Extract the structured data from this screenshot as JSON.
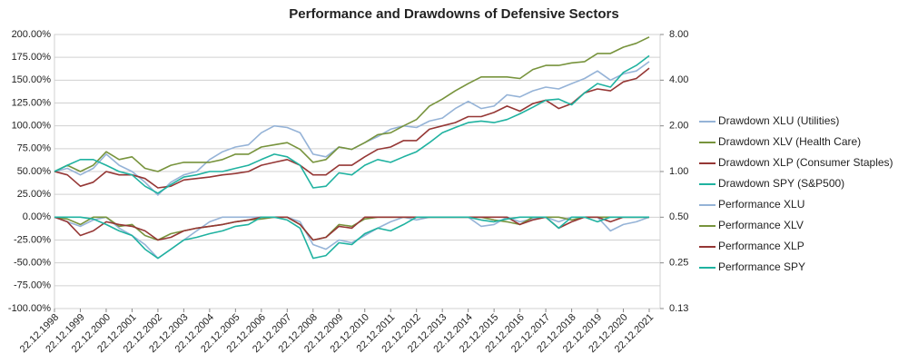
{
  "chart_data": {
    "type": "line",
    "title": "Performance and Drawdowns of Defensive Sectors",
    "categories": [
      "22.12.1998",
      null,
      "22.12.1999",
      null,
      "22.12.2000",
      null,
      "22.12.2001",
      null,
      "22.12.2002",
      null,
      "22.12.2003",
      null,
      "22.12.2004",
      null,
      "22.12.2005",
      null,
      "22.12.2006",
      null,
      "22.12.2007",
      null,
      "22.12.2008",
      null,
      "22.12.2009",
      null,
      "22.12.2010",
      null,
      "22.12.2011",
      null,
      "22.12.2012",
      null,
      "22.12.2013",
      null,
      "22.12.2014",
      null,
      "22.12.2015",
      null,
      "22.12.2016",
      null,
      "22.12.2017",
      null,
      "22.12.2018",
      null,
      "22.12.2019",
      null,
      "22.12.2020",
      null,
      "22.12.2021"
    ],
    "series": [
      {
        "name": "Drawdown XLU (Utilities)",
        "color": "#95b3d7",
        "values": [
          0,
          -5,
          -10,
          -3,
          0,
          -12,
          -20,
          -30,
          -45,
          -35,
          -25,
          -15,
          -5,
          0,
          0,
          0,
          0,
          0,
          0,
          -5,
          -30,
          -35,
          -25,
          -28,
          -20,
          -12,
          -5,
          0,
          -3,
          0,
          0,
          0,
          0,
          -10,
          -8,
          0,
          -5,
          -2,
          0,
          -5,
          0,
          0,
          0,
          -15,
          -8,
          -5,
          0
        ]
      },
      {
        "name": "Drawdown XLV (Health Care)",
        "color": "#77933c",
        "values": [
          0,
          -2,
          -8,
          0,
          0,
          -10,
          -8,
          -20,
          -25,
          -18,
          -15,
          -12,
          -10,
          -8,
          -5,
          -3,
          -2,
          0,
          0,
          -8,
          -25,
          -22,
          -8,
          -10,
          -2,
          0,
          0,
          0,
          0,
          0,
          0,
          0,
          0,
          0,
          -3,
          -5,
          -8,
          0,
          0,
          0,
          -3,
          0,
          0,
          0,
          0,
          0,
          0
        ]
      },
      {
        "name": "Drawdown XLP (Consumer Staples)",
        "color": "#953735",
        "values": [
          0,
          -5,
          -20,
          -15,
          -5,
          -8,
          -10,
          -15,
          -25,
          -22,
          -15,
          -12,
          -10,
          -8,
          -5,
          -3,
          0,
          0,
          0,
          -8,
          -25,
          -22,
          -10,
          -12,
          0,
          0,
          0,
          0,
          0,
          0,
          0,
          0,
          0,
          0,
          0,
          0,
          -8,
          -3,
          0,
          -12,
          -5,
          0,
          0,
          -5,
          0,
          0,
          0
        ]
      },
      {
        "name": "Drawdown SPY (S&P500)",
        "color": "#1fb2a0",
        "values": [
          0,
          0,
          0,
          -2,
          -8,
          -15,
          -20,
          -35,
          -45,
          -35,
          -25,
          -22,
          -18,
          -15,
          -10,
          -8,
          0,
          0,
          -3,
          -12,
          -45,
          -42,
          -28,
          -30,
          -18,
          -12,
          -15,
          -8,
          0,
          0,
          0,
          0,
          0,
          -3,
          -5,
          -2,
          0,
          0,
          0,
          -12,
          0,
          0,
          -5,
          0,
          0,
          0,
          0
        ]
      },
      {
        "name": "Performance XLU",
        "color": "#95b3d7",
        "axis": "y2",
        "values": [
          1.0,
          1.05,
          0.95,
          1.05,
          1.3,
          1.1,
          1.0,
          0.85,
          0.7,
          0.85,
          0.95,
          1.0,
          1.2,
          1.35,
          1.45,
          1.5,
          1.8,
          2.0,
          1.95,
          1.8,
          1.3,
          1.25,
          1.45,
          1.4,
          1.55,
          1.7,
          1.9,
          2.0,
          1.95,
          2.15,
          2.25,
          2.6,
          2.9,
          2.6,
          2.7,
          3.2,
          3.1,
          3.4,
          3.6,
          3.5,
          3.8,
          4.1,
          4.6,
          4.0,
          4.4,
          4.6,
          5.3
        ]
      },
      {
        "name": "Performance XLV",
        "color": "#77933c",
        "axis": "y2",
        "values": [
          1.0,
          1.1,
          1.0,
          1.1,
          1.35,
          1.2,
          1.25,
          1.05,
          1.0,
          1.1,
          1.15,
          1.15,
          1.15,
          1.2,
          1.3,
          1.3,
          1.45,
          1.5,
          1.55,
          1.4,
          1.15,
          1.2,
          1.45,
          1.4,
          1.55,
          1.75,
          1.8,
          2.0,
          2.2,
          2.7,
          3.0,
          3.4,
          3.8,
          4.2,
          4.2,
          4.2,
          4.1,
          4.7,
          5.0,
          5.0,
          5.2,
          5.3,
          6.0,
          6.0,
          6.6,
          7.0,
          7.7
        ]
      },
      {
        "name": "Performance XLP",
        "color": "#953735",
        "axis": "y2",
        "values": [
          1.0,
          0.95,
          0.8,
          0.85,
          1.0,
          0.95,
          0.95,
          0.9,
          0.78,
          0.8,
          0.88,
          0.9,
          0.92,
          0.95,
          0.97,
          1.0,
          1.1,
          1.15,
          1.2,
          1.1,
          0.95,
          0.95,
          1.1,
          1.1,
          1.25,
          1.4,
          1.45,
          1.6,
          1.6,
          1.9,
          2.0,
          2.1,
          2.3,
          2.3,
          2.45,
          2.7,
          2.5,
          2.8,
          2.95,
          2.6,
          2.8,
          3.3,
          3.5,
          3.4,
          3.9,
          4.1,
          4.8
        ]
      },
      {
        "name": "Performance SPY",
        "color": "#1fb2a0",
        "axis": "y2",
        "values": [
          1.0,
          1.1,
          1.2,
          1.2,
          1.1,
          1.0,
          0.95,
          0.8,
          0.72,
          0.82,
          0.92,
          0.95,
          1.0,
          1.0,
          1.05,
          1.1,
          1.2,
          1.3,
          1.25,
          1.1,
          0.78,
          0.8,
          0.98,
          0.95,
          1.1,
          1.2,
          1.15,
          1.25,
          1.35,
          1.55,
          1.8,
          1.95,
          2.1,
          2.15,
          2.1,
          2.2,
          2.4,
          2.65,
          2.95,
          3.0,
          2.75,
          3.3,
          3.8,
          3.6,
          4.5,
          5.0,
          5.8
        ]
      }
    ],
    "ylim": [
      -100,
      200
    ],
    "yticks": [
      {
        "value": -100,
        "label": "-100.00%"
      },
      {
        "value": -75,
        "label": "-75.00%"
      },
      {
        "value": -50,
        "label": "-50.00%"
      },
      {
        "value": -25,
        "label": "-25.00%"
      },
      {
        "value": 0,
        "label": "0.00%"
      },
      {
        "value": 25,
        "label": "25.00%"
      },
      {
        "value": 50,
        "label": "50.00%"
      },
      {
        "value": 75,
        "label": "75.00%"
      },
      {
        "value": 100,
        "label": "100.00%"
      },
      {
        "value": 125,
        "label": "125.00%"
      },
      {
        "value": 150,
        "label": "150.00%"
      },
      {
        "value": 175,
        "label": "175.00%"
      },
      {
        "value": 200,
        "label": "200.00%"
      }
    ],
    "y2lim": [
      0.125,
      8
    ],
    "y2ticks": [
      {
        "value": 0.125,
        "label": "0.13"
      },
      {
        "value": 0.25,
        "label": "0.25"
      },
      {
        "value": 0.5,
        "label": "0.50"
      },
      {
        "value": 1,
        "label": "1.00"
      },
      {
        "value": 2,
        "label": "2.00"
      },
      {
        "value": 4,
        "label": "4.00"
      },
      {
        "value": 8,
        "label": "8.00"
      }
    ],
    "y2log": true,
    "grid": true,
    "legend": "right"
  }
}
